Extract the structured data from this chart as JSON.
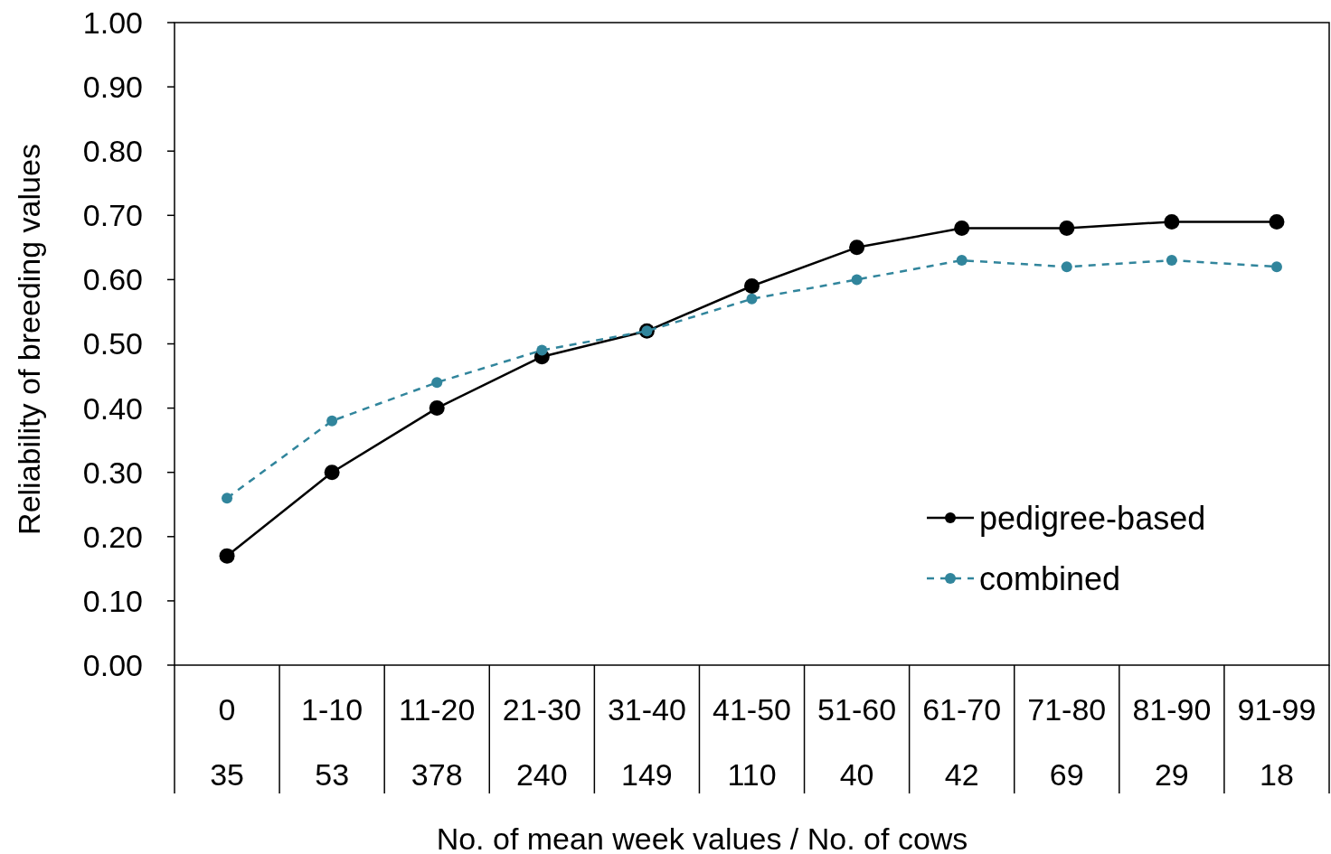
{
  "chart_data": {
    "type": "line",
    "xlabel": "No. of mean week values / No. of cows",
    "ylabel": "Reliability of breeding values",
    "categories": [
      "0\n35",
      "1-10\n53",
      "11-20\n378",
      "21-30\n240",
      "31-40\n149",
      "41-50\n110",
      "51-60\n40",
      "61-70\n42",
      "71-80\n69",
      "81-90\n29",
      "91-99\n18"
    ],
    "series": [
      {
        "name": "pedigree-based",
        "color": "#000000",
        "line_style": "solid",
        "values": [
          0.17,
          0.3,
          0.4,
          0.48,
          0.52,
          0.59,
          0.65,
          0.68,
          0.68,
          0.69,
          0.69
        ]
      },
      {
        "name": "combined",
        "color": "#31859c",
        "line_style": "dashed",
        "values": [
          0.26,
          0.38,
          0.44,
          0.49,
          0.52,
          0.57,
          0.6,
          0.63,
          0.62,
          0.63,
          0.62
        ]
      }
    ],
    "ylim": [
      0,
      1
    ],
    "yticks": [
      {
        "value": 0,
        "label": "0.00"
      },
      {
        "value": 0.1,
        "label": "0.10"
      },
      {
        "value": 0.2,
        "label": "0.20"
      },
      {
        "value": 0.3,
        "label": "0.30"
      },
      {
        "value": 0.4,
        "label": "0.40"
      },
      {
        "value": 0.5,
        "label": "0.50"
      },
      {
        "value": 0.6,
        "label": "0.60"
      },
      {
        "value": 0.7,
        "label": "0.70"
      },
      {
        "value": 0.8,
        "label": "0.80"
      },
      {
        "value": 0.9,
        "label": "0.90"
      },
      {
        "value": 1,
        "label": "1.00"
      }
    ],
    "grid": false,
    "marker": "circle",
    "legend": "bottom right"
  }
}
